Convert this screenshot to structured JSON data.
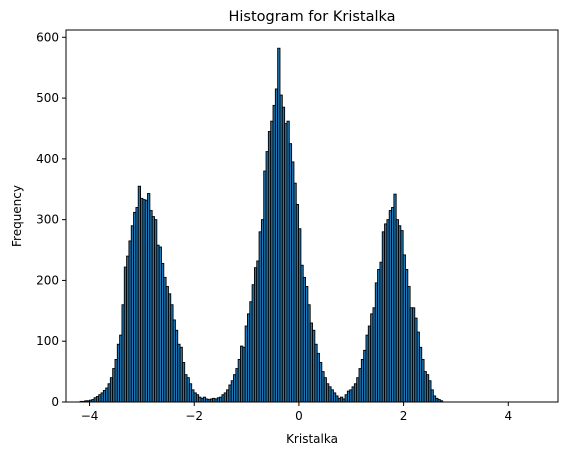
{
  "chart_data": {
    "type": "bar",
    "title": "Histogram for Kristalka",
    "xlabel": "Kristalka",
    "ylabel": "Frequency",
    "xlim": [
      -4.45,
      4.95
    ],
    "ylim": [
      0,
      612
    ],
    "xticks": [
      -4,
      -2,
      0,
      2,
      4
    ],
    "yticks": [
      0,
      100,
      200,
      300,
      400,
      500,
      600
    ],
    "xtick_labels": [
      "−4",
      "−2",
      "0",
      "2",
      "4"
    ],
    "ytick_labels": [
      "0",
      "100",
      "200",
      "300",
      "400",
      "500",
      "600"
    ],
    "bar_color": "#1f77b4",
    "edge_color": "#000000",
    "bin_start": -4.18,
    "bin_width": 0.0444,
    "values": [
      1,
      1,
      2,
      2,
      3,
      4,
      7,
      9,
      12,
      15,
      19,
      23,
      30,
      40,
      55,
      70,
      95,
      110,
      160,
      222,
      240,
      265,
      290,
      312,
      320,
      355,
      335,
      333,
      332,
      343,
      315,
      305,
      300,
      258,
      255,
      228,
      205,
      190,
      178,
      160,
      135,
      118,
      95,
      90,
      65,
      45,
      40,
      30,
      20,
      15,
      12,
      8,
      6,
      8,
      5,
      4,
      5,
      6,
      5,
      7,
      8,
      12,
      15,
      20,
      28,
      35,
      45,
      55,
      70,
      92,
      90,
      125,
      145,
      165,
      193,
      221,
      232,
      280,
      300,
      380,
      412,
      445,
      462,
      488,
      515,
      582,
      505,
      485,
      458,
      462,
      425,
      395,
      360,
      325,
      285,
      225,
      205,
      190,
      160,
      130,
      118,
      95,
      80,
      65,
      50,
      40,
      30,
      25,
      20,
      15,
      10,
      6,
      8,
      5,
      12,
      18,
      20,
      25,
      30,
      40,
      55,
      70,
      85,
      110,
      125,
      145,
      155,
      196,
      218,
      230,
      280,
      293,
      300,
      315,
      320,
      342,
      300,
      290,
      282,
      242,
      218,
      190,
      155,
      155,
      138,
      115,
      90,
      70,
      50,
      45,
      35,
      20,
      10,
      6,
      4,
      2
    ]
  }
}
